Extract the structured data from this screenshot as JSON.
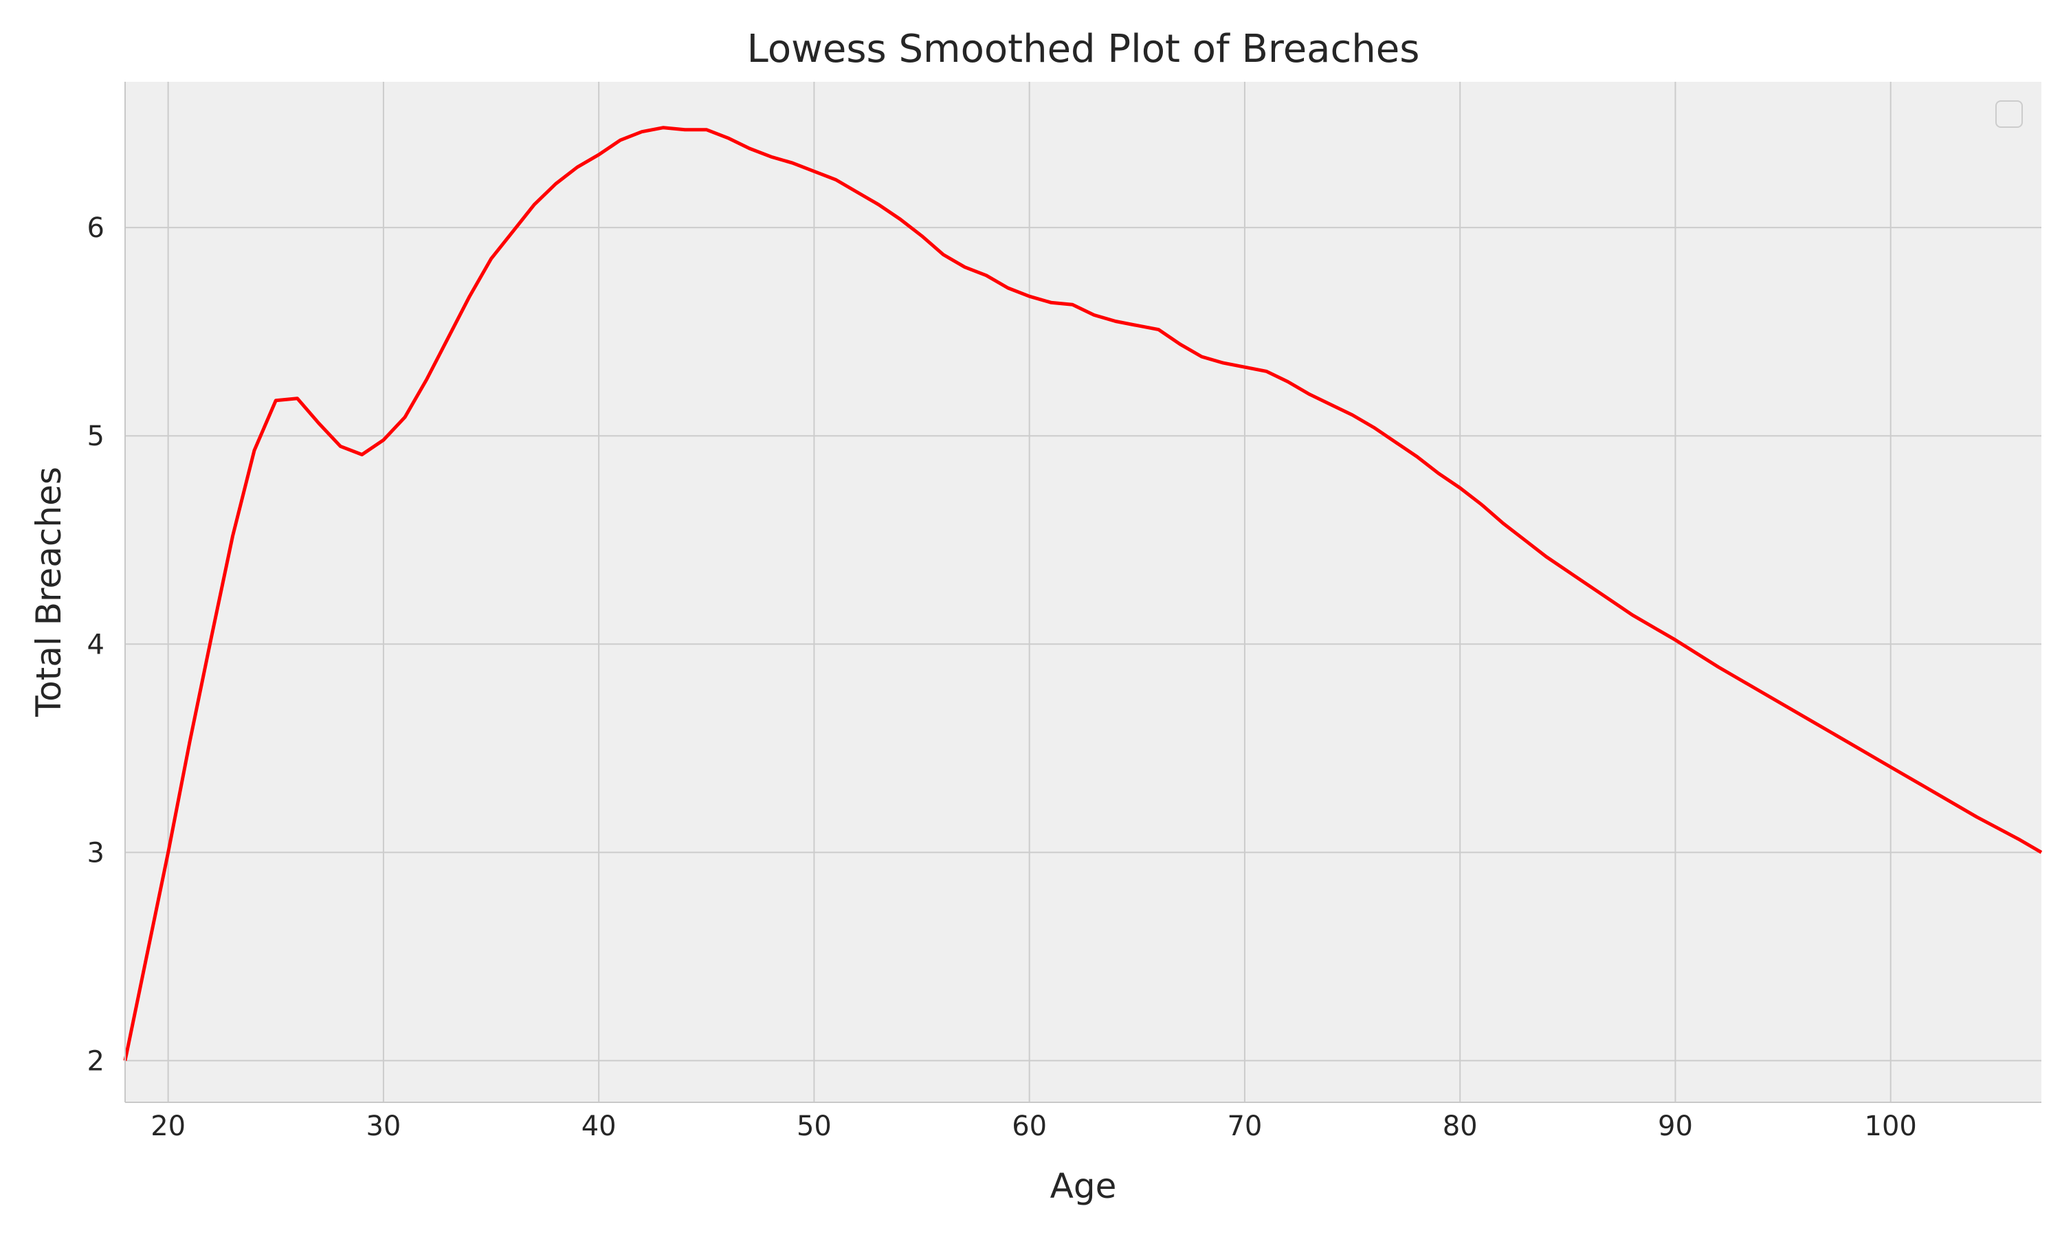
{
  "chart_data": {
    "type": "line",
    "title": "Lowess Smoothed Plot of Breaches",
    "xlabel": "Age",
    "ylabel": "Total Breaches",
    "xlim": [
      18,
      107
    ],
    "ylim": [
      1.8,
      6.7
    ],
    "xticks": [
      20,
      30,
      40,
      50,
      60,
      70,
      80,
      90,
      100
    ],
    "yticks": [
      2,
      3,
      4,
      5,
      6
    ],
    "grid": true,
    "legend": "top-right (empty)",
    "series": [
      {
        "color": "#ff0000",
        "x": [
          18,
          19,
          20,
          21,
          22,
          23,
          24,
          25,
          26,
          27,
          28,
          29,
          30,
          31,
          32,
          33,
          34,
          35,
          36,
          37,
          38,
          39,
          40,
          41,
          42,
          43,
          44,
          45,
          46,
          47,
          48,
          49,
          50,
          51,
          52,
          53,
          54,
          55,
          56,
          57,
          58,
          59,
          60,
          61,
          62,
          63,
          64,
          65,
          66,
          67,
          68,
          69,
          70,
          71,
          72,
          73,
          74,
          75,
          76,
          77,
          78,
          79,
          80,
          81,
          82,
          83,
          84,
          85,
          86,
          87,
          88,
          89,
          90,
          92,
          94,
          96,
          98,
          100,
          102,
          104,
          106,
          107
        ],
        "y": [
          2.0,
          2.5,
          3.0,
          3.53,
          4.03,
          4.52,
          4.93,
          5.17,
          5.18,
          5.06,
          4.95,
          4.91,
          4.98,
          5.09,
          5.27,
          5.47,
          5.67,
          5.85,
          5.98,
          6.11,
          6.21,
          6.29,
          6.35,
          6.42,
          6.46,
          6.48,
          6.47,
          6.47,
          6.43,
          6.38,
          6.34,
          6.31,
          6.27,
          6.23,
          6.17,
          6.11,
          6.04,
          5.96,
          5.87,
          5.81,
          5.77,
          5.71,
          5.67,
          5.64,
          5.63,
          5.58,
          5.55,
          5.53,
          5.51,
          5.44,
          5.38,
          5.35,
          5.33,
          5.31,
          5.26,
          5.2,
          5.15,
          5.1,
          5.04,
          4.97,
          4.9,
          4.82,
          4.75,
          4.67,
          4.58,
          4.5,
          4.42,
          4.35,
          4.28,
          4.21,
          4.14,
          4.08,
          4.02,
          3.89,
          3.77,
          3.65,
          3.53,
          3.41,
          3.29,
          3.17,
          3.06,
          3.0
        ]
      }
    ]
  }
}
